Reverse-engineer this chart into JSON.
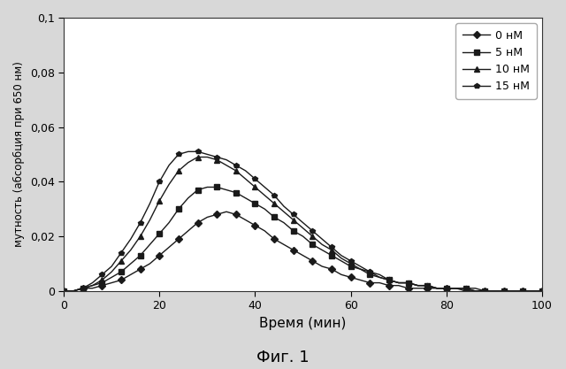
{
  "title": "Фиг. 1",
  "xlabel": "Время (мин)",
  "ylabel": "мутность (абсорбция при 650 нм)",
  "xlim": [
    0,
    100
  ],
  "ylim": [
    0,
    0.1
  ],
  "yticks": [
    0,
    0.02,
    0.04,
    0.06,
    0.08,
    0.1
  ],
  "xticks": [
    0,
    20,
    40,
    60,
    80,
    100
  ],
  "series": [
    {
      "label": "0 нМ",
      "marker": "D",
      "color": "#1a1a1a",
      "x": [
        0,
        2,
        4,
        6,
        8,
        10,
        12,
        14,
        16,
        18,
        20,
        22,
        24,
        26,
        28,
        30,
        32,
        34,
        36,
        38,
        40,
        42,
        44,
        46,
        48,
        50,
        52,
        54,
        56,
        58,
        60,
        62,
        64,
        66,
        68,
        70,
        72,
        74,
        76,
        78,
        80,
        82,
        84,
        86,
        88,
        90,
        92,
        94,
        96,
        98,
        100
      ],
      "y": [
        0,
        0,
        0.001,
        0.001,
        0.002,
        0.003,
        0.004,
        0.006,
        0.008,
        0.01,
        0.013,
        0.016,
        0.019,
        0.022,
        0.025,
        0.027,
        0.028,
        0.029,
        0.028,
        0.026,
        0.024,
        0.022,
        0.019,
        0.017,
        0.015,
        0.013,
        0.011,
        0.009,
        0.008,
        0.006,
        0.005,
        0.004,
        0.003,
        0.003,
        0.002,
        0.002,
        0.001,
        0.001,
        0.001,
        0.001,
        0.001,
        0.001,
        0.0,
        0.0,
        0.0,
        0.0,
        0.0,
        0.0,
        0.0,
        0.0,
        0.0
      ]
    },
    {
      "label": "5 нМ",
      "marker": "s",
      "color": "#1a1a1a",
      "x": [
        0,
        2,
        4,
        6,
        8,
        10,
        12,
        14,
        16,
        18,
        20,
        22,
        24,
        26,
        28,
        30,
        32,
        34,
        36,
        38,
        40,
        42,
        44,
        46,
        48,
        50,
        52,
        54,
        56,
        58,
        60,
        62,
        64,
        66,
        68,
        70,
        72,
        74,
        76,
        78,
        80,
        82,
        84,
        86,
        88,
        90,
        92,
        94,
        96,
        98,
        100
      ],
      "y": [
        0,
        0,
        0.001,
        0.002,
        0.003,
        0.005,
        0.007,
        0.01,
        0.013,
        0.017,
        0.021,
        0.025,
        0.03,
        0.034,
        0.037,
        0.038,
        0.038,
        0.037,
        0.036,
        0.034,
        0.032,
        0.03,
        0.027,
        0.025,
        0.022,
        0.02,
        0.017,
        0.015,
        0.013,
        0.011,
        0.009,
        0.008,
        0.006,
        0.005,
        0.004,
        0.003,
        0.003,
        0.002,
        0.002,
        0.001,
        0.001,
        0.001,
        0.001,
        0.001,
        0.0,
        0.0,
        0.0,
        0.0,
        0.0,
        0.0,
        0.0
      ]
    },
    {
      "label": "10 нМ",
      "marker": "^",
      "color": "#1a1a1a",
      "x": [
        0,
        2,
        4,
        6,
        8,
        10,
        12,
        14,
        16,
        18,
        20,
        22,
        24,
        26,
        28,
        30,
        32,
        34,
        36,
        38,
        40,
        42,
        44,
        46,
        48,
        50,
        52,
        54,
        56,
        58,
        60,
        62,
        64,
        66,
        68,
        70,
        72,
        74,
        76,
        78,
        80,
        82,
        84,
        86,
        88,
        90,
        92,
        94,
        96,
        98,
        100
      ],
      "y": [
        0,
        0,
        0.001,
        0.002,
        0.004,
        0.007,
        0.011,
        0.015,
        0.02,
        0.026,
        0.033,
        0.039,
        0.044,
        0.047,
        0.049,
        0.049,
        0.048,
        0.046,
        0.044,
        0.041,
        0.038,
        0.035,
        0.032,
        0.029,
        0.026,
        0.023,
        0.02,
        0.017,
        0.015,
        0.012,
        0.01,
        0.008,
        0.007,
        0.005,
        0.004,
        0.003,
        0.003,
        0.002,
        0.002,
        0.001,
        0.001,
        0.001,
        0.001,
        0.0,
        0.0,
        0.0,
        0.0,
        0.0,
        0.0,
        0.0,
        0.0
      ]
    },
    {
      "label": "15 нМ",
      "marker": "p",
      "color": "#1a1a1a",
      "x": [
        0,
        2,
        4,
        6,
        8,
        10,
        12,
        14,
        16,
        18,
        20,
        22,
        24,
        26,
        28,
        30,
        32,
        34,
        36,
        38,
        40,
        42,
        44,
        46,
        48,
        50,
        52,
        54,
        56,
        58,
        60,
        62,
        64,
        66,
        68,
        70,
        72,
        74,
        76,
        78,
        80,
        82,
        84,
        86,
        88,
        90,
        92,
        94,
        96,
        98,
        100
      ],
      "y": [
        0,
        0,
        0.001,
        0.003,
        0.006,
        0.009,
        0.014,
        0.019,
        0.025,
        0.032,
        0.04,
        0.046,
        0.05,
        0.051,
        0.051,
        0.05,
        0.049,
        0.048,
        0.046,
        0.044,
        0.041,
        0.038,
        0.035,
        0.031,
        0.028,
        0.025,
        0.022,
        0.019,
        0.016,
        0.013,
        0.011,
        0.009,
        0.007,
        0.006,
        0.004,
        0.003,
        0.003,
        0.002,
        0.002,
        0.001,
        0.001,
        0.001,
        0.001,
        0.0,
        0.0,
        0.0,
        0.0,
        0.0,
        0.0,
        0.0,
        0.0
      ]
    }
  ],
  "background_color": "#d8d8d8",
  "plot_bg_color": "#ffffff"
}
